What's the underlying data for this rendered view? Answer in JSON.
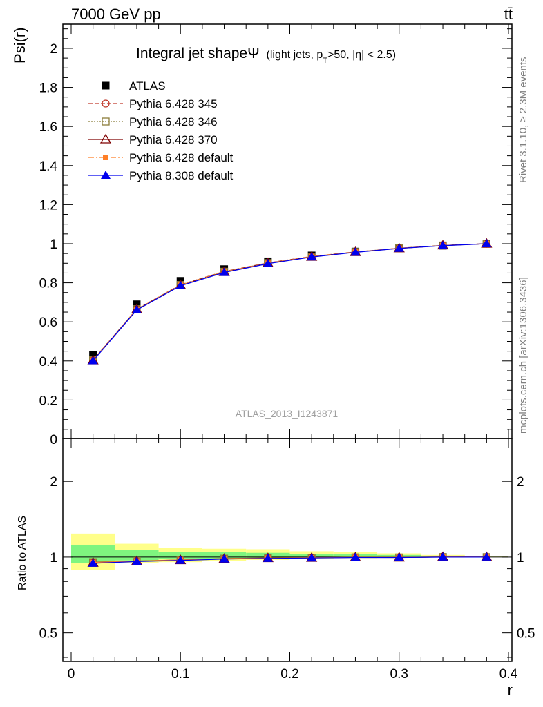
{
  "header": {
    "left": "7000 GeV pp",
    "right": "tt̄"
  },
  "side": {
    "rivet": "Rivet 3.1.10, ≥ 2.3M events",
    "mcplots": "mcplots.cern.ch [arXiv:1306.3436]"
  },
  "analysis_tag": "ATLAS_2013_I1243871",
  "colors": {
    "atlas": "#000000",
    "p345": "#c0392b",
    "p346": "#8b7d3a",
    "p370": "#7f0000",
    "p6def": "#ff7f27",
    "p8def": "#0000ee",
    "band_inner": "#7ff57f",
    "band_outer": "#ffff8a"
  },
  "chart_data": [
    {
      "type": "line",
      "title": "Integral jet shapeΨ",
      "title_extra": "(light jets, p",
      "title_sub": "T",
      "title_tail": ">50, |η| < 2.5)",
      "xlabel": "",
      "ylabel": "Psi(r)",
      "xlim": [
        0,
        0.4
      ],
      "ylim": [
        0,
        2.12
      ],
      "yticks": [
        "0",
        "0.2",
        "0.4",
        "0.6",
        "0.8",
        "1",
        "1.2",
        "1.4",
        "1.6",
        "1.8",
        "2"
      ],
      "x": [
        0.02,
        0.06,
        0.1,
        0.14,
        0.18,
        0.22,
        0.26,
        0.3,
        0.34,
        0.38
      ],
      "series": [
        {
          "name": "ATLAS",
          "marker": "square",
          "values": [
            0.43,
            0.69,
            0.81,
            0.87,
            0.91,
            0.94,
            0.96,
            0.98,
            0.99,
            1.0
          ]
        },
        {
          "name": "Pythia 6.428 345",
          "marker": "circle-open",
          "dash": "6,3",
          "values": [
            0.405,
            0.665,
            0.79,
            0.858,
            0.902,
            0.935,
            0.958,
            0.977,
            0.991,
            1.0
          ]
        },
        {
          "name": "Pythia 6.428 346",
          "marker": "square-open",
          "dash": "2,2",
          "values": [
            0.405,
            0.665,
            0.789,
            0.857,
            0.901,
            0.934,
            0.958,
            0.977,
            0.991,
            1.0
          ]
        },
        {
          "name": "Pythia 6.428 370",
          "marker": "triangle-open",
          "dash": "",
          "values": [
            0.403,
            0.663,
            0.787,
            0.855,
            0.9,
            0.933,
            0.957,
            0.976,
            0.991,
            1.0
          ]
        },
        {
          "name": "Pythia 6.428 default",
          "marker": "square-small",
          "dash": "8,3,2,3",
          "values": [
            0.404,
            0.664,
            0.788,
            0.856,
            0.9,
            0.934,
            0.957,
            0.977,
            0.991,
            1.0
          ]
        },
        {
          "name": "Pythia 8.308 default",
          "marker": "triangle",
          "dash": "",
          "values": [
            0.401,
            0.661,
            0.785,
            0.853,
            0.898,
            0.932,
            0.956,
            0.976,
            0.99,
            1.0
          ]
        }
      ]
    },
    {
      "type": "line",
      "ylabel": "Ratio to ATLAS",
      "xlabel": "r",
      "xlim": [
        0,
        0.4
      ],
      "ylim": [
        0.39,
        2.33
      ],
      "yscale": "log",
      "yticks": [
        "0.5",
        "1",
        "2"
      ],
      "xticks": [
        "0",
        "0.1",
        "0.2",
        "0.3",
        "0.4"
      ],
      "x": [
        0.02,
        0.06,
        0.1,
        0.14,
        0.18,
        0.22,
        0.26,
        0.3,
        0.34,
        0.38
      ],
      "bands": {
        "edges": [
          0,
          0.04,
          0.08,
          0.12,
          0.16,
          0.2,
          0.24,
          0.28,
          0.32,
          0.36,
          0.4
        ],
        "outer_low": [
          0.89,
          0.945,
          0.955,
          0.965,
          0.975,
          0.985,
          0.99,
          0.993,
          0.997,
          0.999
        ],
        "outer_high": [
          1.24,
          1.13,
          1.09,
          1.08,
          1.075,
          1.055,
          1.045,
          1.035,
          1.02,
          1.005
        ],
        "inner_low": [
          0.945,
          0.97,
          0.98,
          0.985,
          0.99,
          0.993,
          0.995,
          0.997,
          0.999,
          0.9995
        ],
        "inner_high": [
          1.12,
          1.07,
          1.05,
          1.045,
          1.04,
          1.03,
          1.025,
          1.02,
          1.01,
          1.003
        ]
      },
      "series": [
        {
          "name": "Pythia 6.428 345",
          "values": [
            0.955,
            0.965,
            0.975,
            0.987,
            0.992,
            0.995,
            0.998,
            0.997,
            1.001,
            1.0
          ]
        },
        {
          "name": "Pythia 6.428 346",
          "values": [
            0.955,
            0.965,
            0.974,
            0.986,
            0.991,
            0.994,
            0.998,
            0.997,
            1.001,
            1.0
          ]
        },
        {
          "name": "Pythia 6.428 370",
          "values": [
            0.95,
            0.963,
            0.972,
            0.984,
            0.99,
            0.993,
            0.997,
            0.996,
            1.001,
            1.0
          ]
        },
        {
          "name": "Pythia 6.428 default",
          "values": [
            0.952,
            0.964,
            0.973,
            0.985,
            0.99,
            0.994,
            0.997,
            0.997,
            1.001,
            1.0
          ]
        },
        {
          "name": "Pythia 8.308 default",
          "values": [
            0.945,
            0.96,
            0.97,
            0.982,
            0.988,
            0.992,
            0.996,
            0.996,
            1.0,
            1.0
          ]
        }
      ]
    }
  ]
}
